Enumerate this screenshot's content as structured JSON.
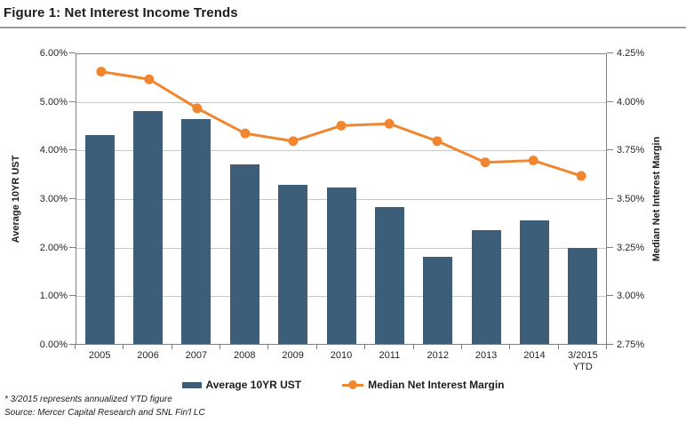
{
  "header": {
    "title": "Figure 1: Net Interest Income Trends"
  },
  "legend": {
    "items": [
      {
        "label": "Average 10YR UST",
        "marker": "bar-swatch",
        "color": "#3d5e79"
      },
      {
        "label": "Median Net Interest Margin",
        "marker": "line-dot-swatch",
        "color": "#f0862f"
      }
    ]
  },
  "footnotes": {
    "note": "* 3/2015 represents annualized YTD figure",
    "source": "Source: Mercer Capital Research and SNL Fin'l LC"
  },
  "colors": {
    "bar": "#3d5e79",
    "line": "#f0862f",
    "gridline": "#c6c6c6",
    "axis": "#7f7f7f",
    "text": "#1c1c1c"
  },
  "chart_data": {
    "type": "bar",
    "subtype": "combo bar+line, dual y-axes",
    "title": "Figure 1: Net Interest Income Trends",
    "categories": [
      "2005",
      "2006",
      "2007",
      "2008",
      "2009",
      "2010",
      "2011",
      "2012",
      "2013",
      "2014",
      "3/2015\nYTD"
    ],
    "series": [
      {
        "name": "Average 10YR UST",
        "type": "bar",
        "axis": "left",
        "color": "#3d5e79",
        "values": [
          4.3,
          4.79,
          4.63,
          3.69,
          3.27,
          3.22,
          2.82,
          1.8,
          2.35,
          2.54,
          1.97
        ]
      },
      {
        "name": "Median Net Interest Margin",
        "type": "line",
        "axis": "right",
        "color": "#f0862f",
        "values": [
          4.16,
          4.12,
          3.97,
          3.84,
          3.8,
          3.88,
          3.89,
          3.8,
          3.69,
          3.7,
          3.62
        ]
      }
    ],
    "axes": {
      "left": {
        "label": "Average 10YR UST",
        "min": 0,
        "max": 6,
        "step": 1,
        "ticks": [
          "0.00%",
          "1.00%",
          "2.00%",
          "3.00%",
          "4.00%",
          "5.00%",
          "6.00%"
        ]
      },
      "right": {
        "label": "Median Net Interest Margin",
        "min": 2.75,
        "max": 4.25,
        "step": 0.25,
        "ticks": [
          "2.75%",
          "3.00%",
          "3.25%",
          "3.50%",
          "3.75%",
          "4.00%",
          "4.25%"
        ]
      }
    },
    "grid": true,
    "legend_position": "bottom",
    "units": "percent"
  }
}
